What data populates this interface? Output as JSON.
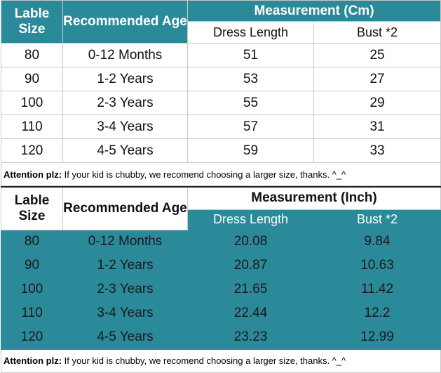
{
  "tables": [
    {
      "header": {
        "size": "Lable Size",
        "age": "Recommended Age",
        "measurement": "Measurement (Cm)",
        "columns": [
          "Dress Length",
          "Bust *2"
        ]
      },
      "rows": [
        [
          "80",
          "0-12 Months",
          "51",
          "25"
        ],
        [
          "90",
          "1-2 Years",
          "53",
          "27"
        ],
        [
          "100",
          "2-3 Years",
          "55",
          "29"
        ],
        [
          "110",
          "3-4 Years",
          "57",
          "31"
        ],
        [
          "120",
          "4-5 Years",
          "59",
          "33"
        ]
      ],
      "note": {
        "label": "Attention plz:",
        "text": "If your kid is chubby, we recomend choosing a larger size, thanks. ^_^"
      }
    },
    {
      "header": {
        "size": "Lable Size",
        "age": "Recommended Age",
        "measurement": "Measurement (Inch)",
        "columns": [
          "Dress Length",
          "Bust *2"
        ]
      },
      "rows": [
        [
          "80",
          "0-12 Months",
          "20.08",
          "9.84"
        ],
        [
          "90",
          "1-2 Years",
          "20.87",
          "10.63"
        ],
        [
          "100",
          "2-3 Years",
          "21.65",
          "11.42"
        ],
        [
          "110",
          "3-4 Years",
          "22.44",
          "12.2"
        ],
        [
          "120",
          "4-5 Years",
          "23.23",
          "12.99"
        ]
      ],
      "note": {
        "label": "Attention plz:",
        "text": "If your kid is chubby, we recomend choosing a larger size, thanks. ^_^"
      }
    }
  ]
}
